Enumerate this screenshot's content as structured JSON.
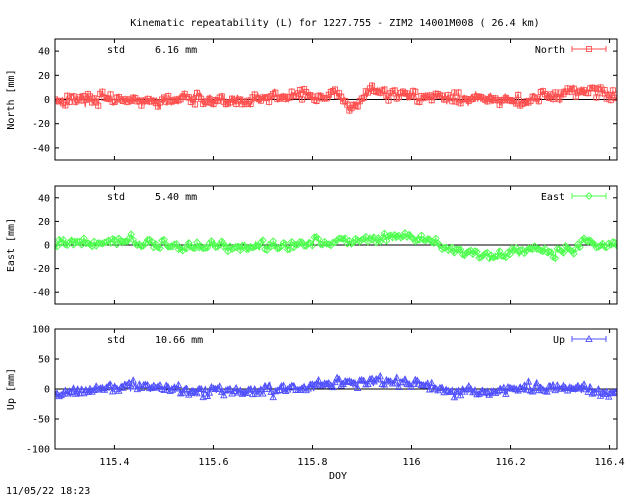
{
  "chart_data": {
    "type": "scatter",
    "title": "Kinematic repeatability (L) for 1227.755 - ZIM2 14001M008  ( 26.4 km)",
    "xlabel": "DOY",
    "xlim": [
      115.28,
      116.415
    ],
    "xticks": [
      115.4,
      115.6,
      115.8,
      116,
      116.2,
      116.4
    ],
    "xtick_labels": [
      "115.4",
      "115.6",
      "115.8",
      "116",
      "116.2",
      "116.4"
    ],
    "timestamp": "11/05/22 18:23",
    "panels": [
      {
        "id": "north",
        "ylabel": "North [mm]",
        "ylim": [
          -50,
          50
        ],
        "yticks": [
          -40,
          -20,
          0,
          20,
          40
        ],
        "std_label": "std",
        "std_value": "6.16 mm",
        "legend": "North",
        "color": "#ff5050",
        "marker": "square",
        "profile": [
          [
            115.28,
            0
          ],
          [
            115.35,
            1
          ],
          [
            115.45,
            -2
          ],
          [
            115.55,
            1
          ],
          [
            115.65,
            -1
          ],
          [
            115.75,
            2
          ],
          [
            115.85,
            4
          ],
          [
            115.88,
            -8
          ],
          [
            115.92,
            8
          ],
          [
            116.0,
            3
          ],
          [
            116.1,
            0
          ],
          [
            116.2,
            -1
          ],
          [
            116.3,
            4
          ],
          [
            116.33,
            10
          ],
          [
            116.38,
            6
          ],
          [
            116.415,
            4
          ]
        ],
        "amplitude": 6
      },
      {
        "id": "east",
        "ylabel": "East [mm]",
        "ylim": [
          -50,
          50
        ],
        "yticks": [
          -40,
          -20,
          0,
          20,
          40
        ],
        "std_label": "std",
        "std_value": "5.40 mm",
        "legend": "East",
        "color": "#50ff50",
        "marker": "diamond",
        "profile": [
          [
            115.28,
            2
          ],
          [
            115.4,
            3
          ],
          [
            115.5,
            0
          ],
          [
            115.65,
            -2
          ],
          [
            115.8,
            2
          ],
          [
            115.9,
            4
          ],
          [
            116.0,
            8
          ],
          [
            116.05,
            0
          ],
          [
            116.15,
            -10
          ],
          [
            116.25,
            -3
          ],
          [
            116.3,
            -8
          ],
          [
            116.35,
            2
          ],
          [
            116.415,
            0
          ]
        ],
        "amplitude": 5
      },
      {
        "id": "up",
        "ylabel": "Up [mm]",
        "ylim": [
          -100,
          100
        ],
        "yticks": [
          -100,
          -50,
          0,
          50,
          100
        ],
        "std_label": "std",
        "std_value": "10.66 mm",
        "legend": "Up",
        "color": "#5050ff",
        "marker": "triangle",
        "profile": [
          [
            115.28,
            -10
          ],
          [
            115.35,
            0
          ],
          [
            115.45,
            5
          ],
          [
            115.55,
            0
          ],
          [
            115.65,
            -5
          ],
          [
            115.75,
            0
          ],
          [
            115.85,
            10
          ],
          [
            115.95,
            15
          ],
          [
            116.05,
            0
          ],
          [
            116.15,
            -5
          ],
          [
            116.25,
            5
          ],
          [
            116.35,
            0
          ],
          [
            116.415,
            -5
          ]
        ],
        "amplitude": 10
      }
    ]
  }
}
